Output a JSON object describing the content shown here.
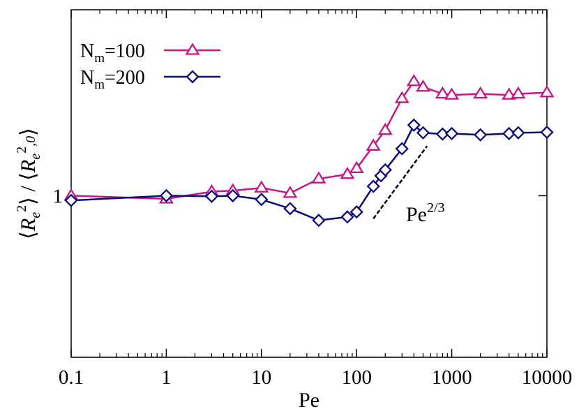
{
  "chart_data": {
    "type": "line",
    "title": "",
    "xlabel": "Pe",
    "ylabel": "⟨R_e²⟩ / ⟨R_e,0²⟩",
    "xscale": "log",
    "yscale": "log",
    "xlim": [
      0.1,
      10000
    ],
    "ylim": [
      0.6,
      1.8
    ],
    "xticks": [
      0.1,
      1,
      10,
      100,
      1000,
      10000
    ],
    "xtick_labels": [
      "0.1",
      "1",
      "10",
      "100",
      "1000",
      "10000"
    ],
    "yticks": [
      1
    ],
    "ytick_labels": [
      "1"
    ],
    "grid": false,
    "legend_position": "top-left",
    "series": [
      {
        "name": "N_m=100",
        "legend_base": "N",
        "legend_sub": "m",
        "legend_rest": "=100",
        "color": "#c71585",
        "marker": "triangle",
        "x": [
          0.1,
          1,
          3,
          5,
          10,
          20,
          40,
          80,
          100,
          150,
          200,
          300,
          400,
          500,
          800,
          1000,
          2000,
          4000,
          5000,
          10000
        ],
        "y": [
          1.0,
          0.99,
          1.013,
          1.016,
          1.025,
          1.008,
          1.055,
          1.07,
          1.09,
          1.17,
          1.23,
          1.36,
          1.435,
          1.41,
          1.38,
          1.375,
          1.38,
          1.375,
          1.38,
          1.385
        ]
      },
      {
        "name": "N_m=200",
        "legend_base": "N",
        "legend_sub": "m",
        "legend_rest": "=200",
        "color": "#0b0b7a",
        "marker": "diamond",
        "x": [
          0.1,
          1,
          3,
          5,
          10,
          20,
          40,
          80,
          100,
          150,
          180,
          200,
          300,
          400,
          500,
          800,
          1000,
          2000,
          4000,
          5000,
          10000
        ],
        "y": [
          0.985,
          1.0,
          0.998,
          1.0,
          0.988,
          0.96,
          0.925,
          0.935,
          0.95,
          1.03,
          1.065,
          1.085,
          1.16,
          1.25,
          1.22,
          1.215,
          1.217,
          1.212,
          1.217,
          1.22,
          1.222
        ]
      }
    ],
    "annotations": [
      {
        "type": "slope_line",
        "base": "Pe",
        "exponent": "2/3",
        "x": [
          150,
          550
        ],
        "y": [
          0.93,
          1.17
        ]
      }
    ]
  }
}
